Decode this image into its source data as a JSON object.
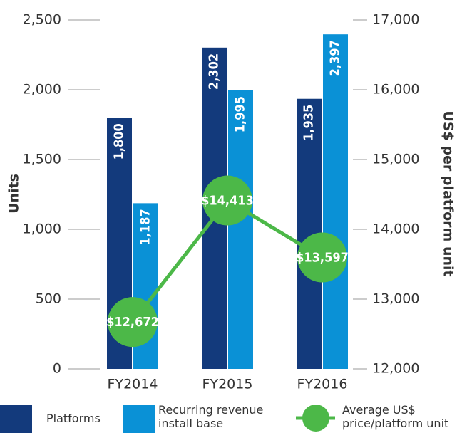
{
  "chart_data": {
    "type": "bar",
    "categories": [
      "FY2014",
      "FY2015",
      "FY2016"
    ],
    "ylabel": "Units",
    "y2label": "US$ per platform unit",
    "ylim": [
      0,
      2500
    ],
    "yticks": [
      0,
      500,
      {
        "value": 1000,
        "label": "1,000"
      },
      {
        "value": 1500,
        "label": "1,500"
      },
      {
        "value": 2000,
        "label": "2,000"
      },
      {
        "value": 2500,
        "label": "2,500"
      }
    ],
    "y2lim": [
      12000,
      17000
    ],
    "y2ticks": [
      {
        "value": 12000,
        "label": "12,000"
      },
      {
        "value": 13000,
        "label": "13,000"
      },
      {
        "value": 14000,
        "label": "14,000"
      },
      {
        "value": 15000,
        "label": "15,000"
      },
      {
        "value": 16000,
        "label": "16,000"
      },
      {
        "value": 17000,
        "label": "17,000"
      }
    ],
    "series": [
      {
        "name": "Platforms",
        "type": "bar",
        "color": "#133a7c",
        "values": [
          1800,
          2302,
          1935
        ],
        "value_labels": [
          "1,800",
          "2,302",
          "1,935"
        ]
      },
      {
        "name": "Recurring revenue install base",
        "type": "bar",
        "color": "#0a91d6",
        "values": [
          1187,
          1995,
          2397
        ],
        "value_labels": [
          "1,187",
          "1,995",
          "2,397"
        ]
      },
      {
        "name": "Average US$ price/platform unit",
        "type": "line",
        "axis": "y2",
        "color": "#4cb848",
        "values": [
          12672,
          14413,
          13597
        ],
        "value_labels": [
          "$12,672",
          "$14,413",
          "$13,597"
        ]
      }
    ]
  }
}
